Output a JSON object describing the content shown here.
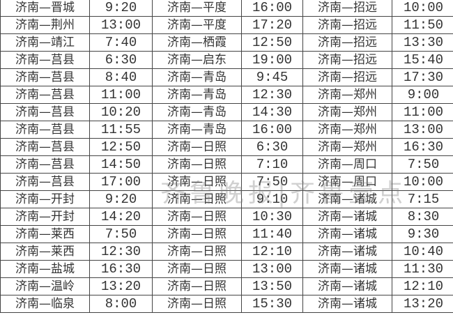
{
  "watermark": "齐鲁晚报|齐鲁壹点",
  "rows": [
    [
      "济南—晋城",
      "9:20",
      "济南—平度",
      "16:00",
      "济南—招远",
      "10:00"
    ],
    [
      "济南—荆州",
      "13:00",
      "济南—平度",
      "17:20",
      "济南—招远",
      "11:50"
    ],
    [
      "济南—靖江",
      "7:40",
      "济南—栖霞",
      "12:50",
      "济南—招远",
      "13:30"
    ],
    [
      "济南—莒县",
      "6:30",
      "济南—启东",
      "19:00",
      "济南—招远",
      "15:40"
    ],
    [
      "济南—莒县",
      "8:40",
      "济南—青岛",
      "9:45",
      "济南—招远",
      "17:30"
    ],
    [
      "济南—莒县",
      "11:00",
      "济南—青岛",
      "12:30",
      "济南—郑州",
      "9:00"
    ],
    [
      "济南—莒县",
      "10:20",
      "济南—青岛",
      "14:30",
      "济南—郑州",
      "11:00"
    ],
    [
      "济南—莒县",
      "11:55",
      "济南—青岛",
      "16:00",
      "济南—郑州",
      "13:00"
    ],
    [
      "济南—莒县",
      "12:50",
      "济南—日照",
      "6:30",
      "济南—郑州",
      "16:30"
    ],
    [
      "济南—莒县",
      "14:50",
      "济南—日照",
      "7:10",
      "济南—周口",
      "7:50"
    ],
    [
      "济南—莒县",
      "17:00",
      "济南—日照",
      "7:50",
      "济南—周口",
      "10:00"
    ],
    [
      "济南—开封",
      "9:20",
      "济南—日照",
      "9:10",
      "济南—诸城",
      "7:15"
    ],
    [
      "济南—开封",
      "14:20",
      "济南—日照",
      "10:30",
      "济南—诸城",
      "8:30"
    ],
    [
      "济南—莱西",
      "7:50",
      "济南—日照",
      "11:40",
      "济南—诸城",
      "9:30"
    ],
    [
      "济南—莱西",
      "12:30",
      "济南—日照",
      "12:10",
      "济南—诸城",
      "10:40"
    ],
    [
      "济南—盐城",
      "16:30",
      "济南—日照",
      "13:00",
      "济南—诸城",
      "11:30"
    ],
    [
      "济南—温岭",
      "13:20",
      "济南—日照",
      "13:50",
      "济南—诸城",
      "12:10"
    ],
    [
      "济南—临泉",
      "8:00",
      "济南—日照",
      "15:30",
      "济南—诸城",
      "13:20"
    ]
  ]
}
